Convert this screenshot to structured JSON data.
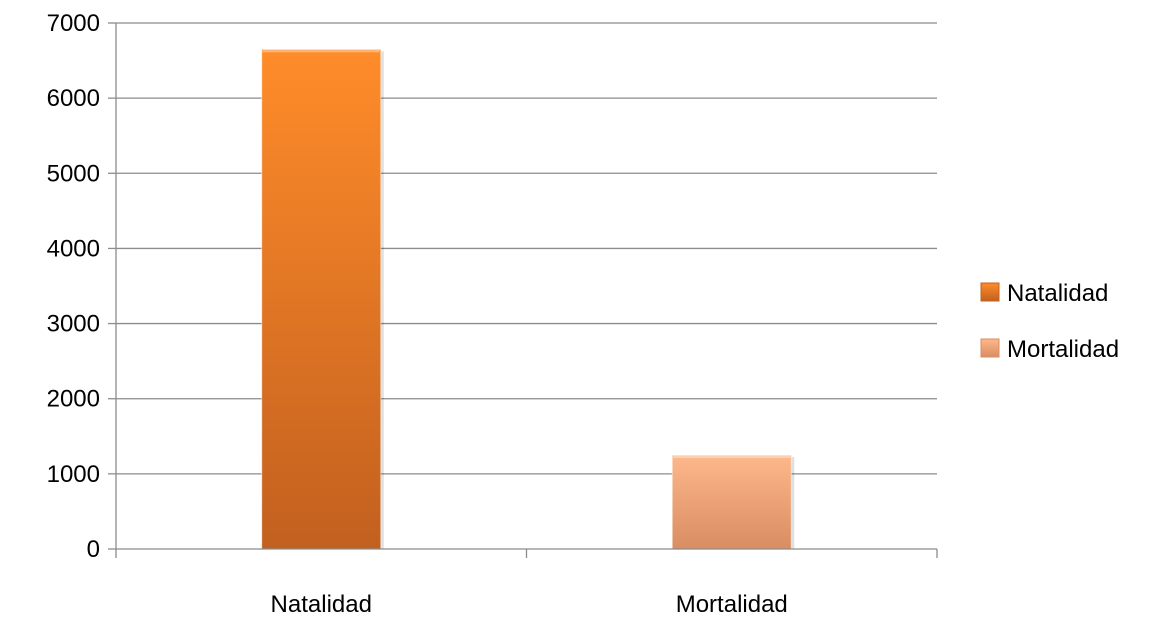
{
  "chart_data": {
    "type": "bar",
    "categories": [
      "Natalidad",
      "Mortalidad"
    ],
    "values": [
      6650,
      1250
    ],
    "ylim": [
      0,
      7000
    ],
    "yticks": [
      0,
      1000,
      2000,
      3000,
      4000,
      5000,
      6000,
      7000
    ],
    "ytick_labels": [
      "0",
      "1000",
      "2000",
      "3000",
      "4000",
      "5000",
      "6000",
      "7000"
    ],
    "grid": true,
    "legend": {
      "placement": "right",
      "entries": [
        "Natalidad",
        "Mortalidad"
      ]
    },
    "colors": {
      "Natalidad": {
        "top": "#ff8c2a",
        "bottom": "#c2601f"
      },
      "Mortalidad": {
        "top": "#fdb88a",
        "bottom": "#d98d62"
      },
      "grid": "#8c8c8c",
      "axis": "#8c8c8c"
    }
  }
}
